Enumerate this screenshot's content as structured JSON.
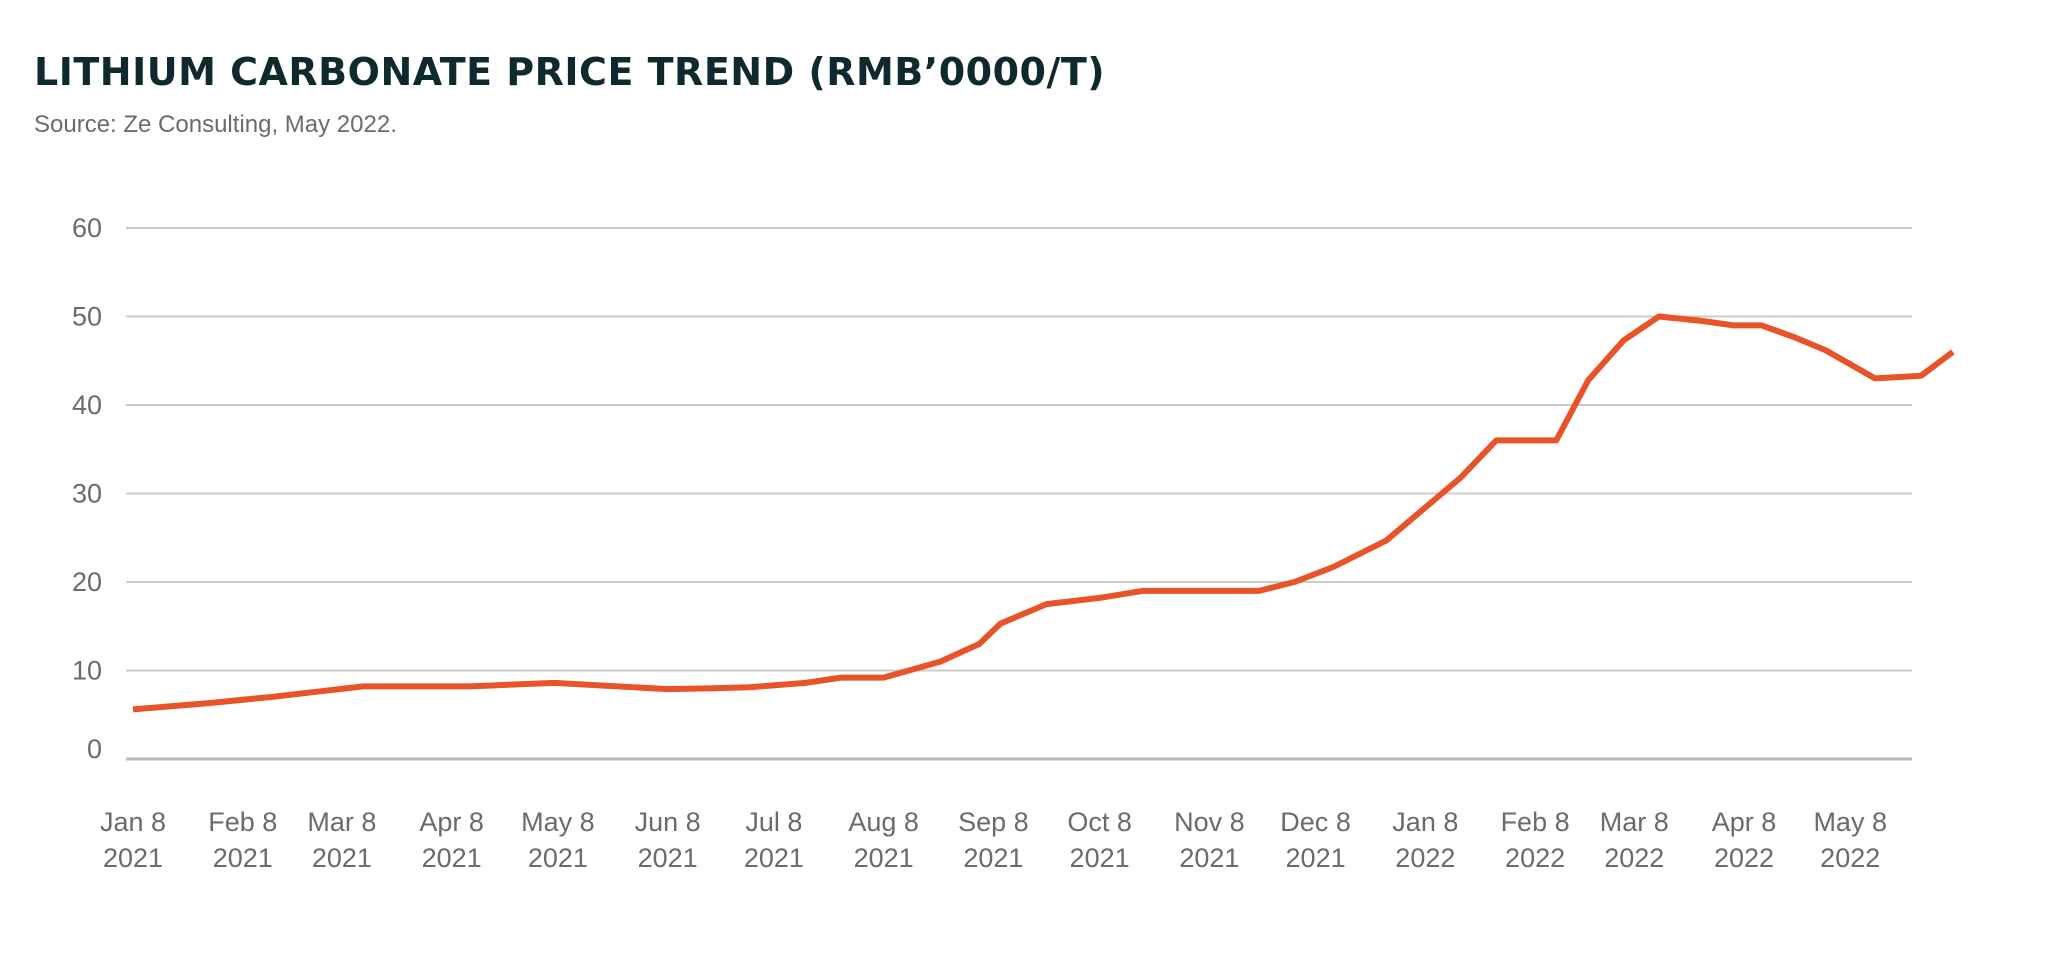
{
  "chart_data": {
    "type": "line",
    "title": "LITHIUM CARBONATE PRICE TREND (RMB’0000/T)",
    "subtitle": "Source: Ze Consulting, May 2022.",
    "xlabel": "",
    "ylabel": "",
    "ylim": [
      0,
      60
    ],
    "yticks": [
      "60",
      "50",
      "40",
      "30",
      "20",
      "10",
      "0"
    ],
    "ytick_values": [
      60,
      50,
      40,
      30,
      20,
      10,
      0
    ],
    "xlim": [
      "2021-01-08",
      "2022-05-15"
    ],
    "xticks": [
      {
        "date": "2021-01-08",
        "line1": "Jan 8",
        "line2": "2021"
      },
      {
        "date": "2021-02-08",
        "line1": "Feb 8",
        "line2": "2021"
      },
      {
        "date": "2021-03-08",
        "line1": "Mar 8",
        "line2": "2021"
      },
      {
        "date": "2021-04-08",
        "line1": "Apr 8",
        "line2": "2021"
      },
      {
        "date": "2021-05-08",
        "line1": "May 8",
        "line2": "2021"
      },
      {
        "date": "2021-06-08",
        "line1": "Jun 8",
        "line2": "2021"
      },
      {
        "date": "2021-07-08",
        "line1": "Jul 8",
        "line2": "2021"
      },
      {
        "date": "2021-08-08",
        "line1": "Aug 8",
        "line2": "2021"
      },
      {
        "date": "2021-09-08",
        "line1": "Sep 8",
        "line2": "2021"
      },
      {
        "date": "2021-10-08",
        "line1": "Oct 8",
        "line2": "2021"
      },
      {
        "date": "2021-11-08",
        "line1": "Nov 8",
        "line2": "2021"
      },
      {
        "date": "2021-12-08",
        "line1": "Dec 8",
        "line2": "2021"
      },
      {
        "date": "2022-01-08",
        "line1": "Jan 8",
        "line2": "2022"
      },
      {
        "date": "2022-02-08",
        "line1": "Feb 8",
        "line2": "2022"
      },
      {
        "date": "2022-03-08",
        "line1": "Mar 8",
        "line2": "2022"
      },
      {
        "date": "2022-04-08",
        "line1": "Apr 8",
        "line2": "2022"
      },
      {
        "date": "2022-05-08",
        "line1": "May 8",
        "line2": "2022"
      }
    ],
    "grid": true,
    "legend": "none",
    "series": [
      {
        "color": "#e8532a",
        "points": [
          {
            "x": "2021-01-08",
            "y": 5.6
          },
          {
            "x": "2021-01-29",
            "y": 6.3
          },
          {
            "x": "2021-02-16",
            "y": 7.0
          },
          {
            "x": "2021-03-01",
            "y": 7.6
          },
          {
            "x": "2021-03-14",
            "y": 8.2
          },
          {
            "x": "2021-04-13",
            "y": 8.2
          },
          {
            "x": "2021-05-07",
            "y": 8.6
          },
          {
            "x": "2021-06-08",
            "y": 7.9
          },
          {
            "x": "2021-06-21",
            "y": 8.0
          },
          {
            "x": "2021-07-01",
            "y": 8.1
          },
          {
            "x": "2021-07-17",
            "y": 8.6
          },
          {
            "x": "2021-07-27",
            "y": 9.2
          },
          {
            "x": "2021-08-08",
            "y": 9.2
          },
          {
            "x": "2021-08-24",
            "y": 11.0
          },
          {
            "x": "2021-09-04",
            "y": 13.0
          },
          {
            "x": "2021-09-10",
            "y": 15.3
          },
          {
            "x": "2021-09-23",
            "y": 17.5
          },
          {
            "x": "2021-10-08",
            "y": 18.2
          },
          {
            "x": "2021-10-20",
            "y": 19.0
          },
          {
            "x": "2021-11-22",
            "y": 19.0
          },
          {
            "x": "2021-12-02",
            "y": 20.0
          },
          {
            "x": "2021-12-13",
            "y": 21.7
          },
          {
            "x": "2021-12-28",
            "y": 24.7
          },
          {
            "x": "2022-01-18",
            "y": 31.8
          },
          {
            "x": "2022-01-28",
            "y": 36.0
          },
          {
            "x": "2022-02-14",
            "y": 36.0
          },
          {
            "x": "2022-02-23",
            "y": 42.8
          },
          {
            "x": "2022-03-05",
            "y": 47.3
          },
          {
            "x": "2022-03-15",
            "y": 50.0
          },
          {
            "x": "2022-03-27",
            "y": 49.5
          },
          {
            "x": "2022-04-05",
            "y": 49.0
          },
          {
            "x": "2022-04-13",
            "y": 49.0
          },
          {
            "x": "2022-04-22",
            "y": 47.7
          },
          {
            "x": "2022-05-01",
            "y": 46.2
          },
          {
            "x": "2022-05-15",
            "y": 43.0
          },
          {
            "x": "2022-05-28",
            "y": 43.3
          },
          {
            "x": "2022-06-06",
            "y": 46.0
          }
        ]
      }
    ]
  }
}
